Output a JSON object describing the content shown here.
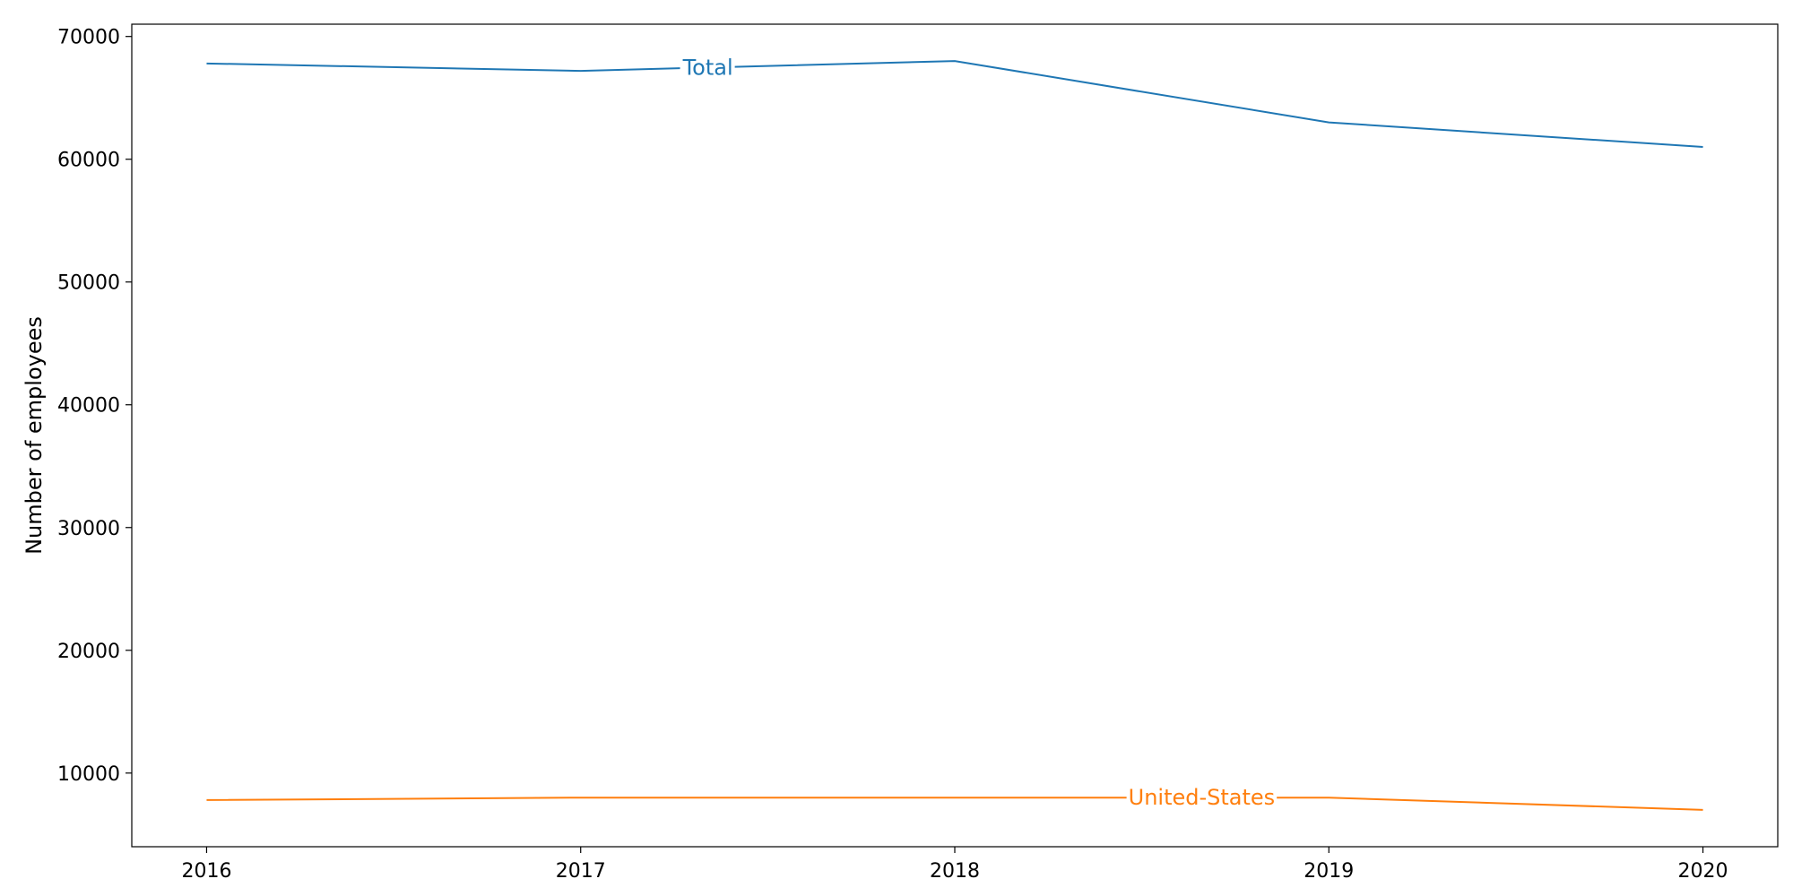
{
  "chart_data": {
    "type": "line",
    "title": "",
    "xlabel": "",
    "ylabel": "Number of employees",
    "x": [
      2016,
      2017,
      2018,
      2019,
      2020
    ],
    "xlim": [
      2015.8,
      2020.2
    ],
    "ylim": [
      4000,
      71000
    ],
    "yticks": [
      10000,
      20000,
      30000,
      40000,
      50000,
      60000,
      70000
    ],
    "grid": false,
    "legend": "none",
    "series": [
      {
        "name": "Total",
        "color": "#1f77b4",
        "values": [
          67800,
          67200,
          68000,
          63000,
          61000
        ],
        "label_at_x": 2017.34
      },
      {
        "name": "United-States",
        "color": "#ff7f0e",
        "values": [
          7800,
          8000,
          8000,
          8000,
          7000
        ],
        "label_at_x": 2018.66
      }
    ]
  }
}
